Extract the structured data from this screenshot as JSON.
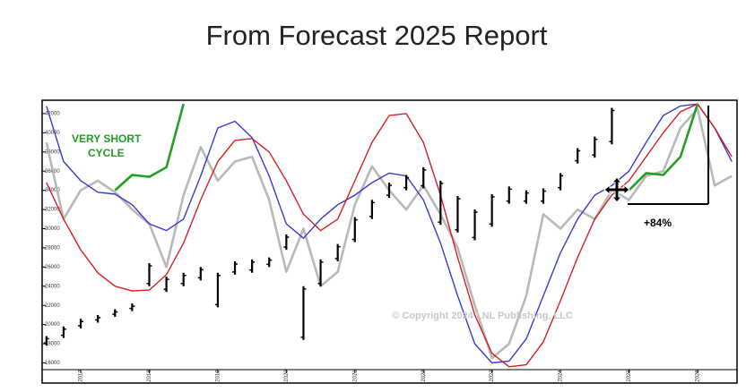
{
  "chart_data": {
    "type": "line",
    "title": "From Forecast 2025 Report",
    "annotations": [
      "VERY SHORT",
      "CYCLE",
      "+84%",
      "© Copyright 2024 LNL Publishing, LLC"
    ],
    "x": [
      2016.5,
      2016.75,
      2017.0,
      2017.25,
      2017.5,
      2017.75,
      2018.0,
      2018.25,
      2018.5,
      2018.75,
      2019.0,
      2019.25,
      2019.5,
      2019.75,
      2020.0,
      2020.25,
      2020.5,
      2020.75,
      2021.0,
      2021.25,
      2021.5,
      2021.75,
      2022.0,
      2022.25,
      2022.5,
      2022.75,
      2023.0,
      2023.25,
      2023.5,
      2023.75,
      2024.0,
      2024.25,
      2024.5,
      2024.75,
      2025.0,
      2025.25,
      2025.5,
      2025.75,
      2026.0,
      2026.25,
      2026.5
    ],
    "series": [
      {
        "color": "#b8b8b8",
        "values": [
          39000,
          31000,
          34000,
          35000,
          33800,
          32000,
          30500,
          26000,
          33500,
          38500,
          35000,
          37000,
          37500,
          33000,
          25500,
          30000,
          24000,
          25500,
          32500,
          36500,
          34000,
          32000,
          34500,
          31500,
          28000,
          22000,
          16500,
          18000,
          23000,
          31500,
          30000,
          32000,
          31000,
          34000,
          33000,
          35500,
          36000,
          40500,
          42500,
          34500,
          35500
        ]
      },
      {
        "color": "#3a3acc",
        "values": [
          42800,
          37000,
          35000,
          33800,
          33600,
          32500,
          30500,
          29800,
          31000,
          35500,
          40500,
          41200,
          39500,
          35500,
          30500,
          29000,
          31000,
          32500,
          33500,
          34800,
          35800,
          35500,
          33000,
          28500,
          23000,
          18000,
          16000,
          16200,
          18500,
          23000,
          27500,
          31000,
          33500,
          34500,
          36000,
          39000,
          41800,
          42800,
          43000,
          40500,
          37000
        ]
      },
      {
        "color": "#d42020",
        "values": [
          34800,
          31000,
          27800,
          25400,
          24000,
          23500,
          23600,
          25200,
          28500,
          33000,
          37000,
          39200,
          39400,
          38000,
          35000,
          31500,
          29800,
          31000,
          35000,
          39000,
          41800,
          42000,
          39000,
          33500,
          27000,
          21000,
          17000,
          15600,
          15800,
          18200,
          22500,
          27000,
          31000,
          33500,
          35000,
          37500,
          40000,
          42200,
          43000,
          40500,
          37500
        ]
      },
      {
        "color": "#22a022",
        "values": [
          null,
          null,
          null,
          null,
          34000,
          35600,
          35400,
          36400,
          43000,
          null,
          null,
          null,
          null,
          null,
          null,
          null,
          null,
          null,
          null,
          null,
          null,
          null,
          null,
          null,
          null,
          null,
          null,
          null,
          null,
          null,
          null,
          null,
          null,
          null,
          34000,
          35800,
          35600,
          37500,
          43000,
          null,
          null
        ]
      },
      {
        "color": "#000000",
        "high": [
          18800,
          19800,
          20600,
          21000,
          21600,
          22200,
          26400,
          25000,
          25400,
          26000,
          25400,
          26600,
          26800,
          27000,
          29400,
          24000,
          26800,
          28400,
          31200,
          33000,
          34800,
          35600,
          36400,
          35000,
          33400,
          32000,
          33600,
          34400,
          34000,
          34200,
          35800,
          38400,
          39600,
          42600,
          null,
          null,
          null,
          null,
          null,
          null,
          null
        ],
        "low": [
          17800,
          18600,
          19600,
          20200,
          20800,
          21400,
          24000,
          23400,
          24000,
          24600,
          21800,
          25200,
          25400,
          26000,
          27800,
          18400,
          24000,
          26600,
          28600,
          31000,
          33200,
          34000,
          34200,
          30400,
          29600,
          28800,
          30200,
          32600,
          32600,
          32600,
          34000,
          36800,
          37400,
          38800,
          null,
          null,
          null,
          null,
          null,
          null,
          null
        ]
      }
    ],
    "xlim": [
      2016.45,
      2026.55
    ],
    "xticks": [
      2017,
      2018,
      2019,
      2020,
      2021,
      2022,
      2023,
      2024,
      2025,
      2026
    ],
    "ylim": [
      15300,
      43300
    ],
    "yticks": [
      16000,
      18000,
      20000,
      22000,
      24000,
      26000,
      28000,
      30000,
      32000,
      34000,
      36000,
      38000,
      40000,
      42000
    ],
    "grid": false
  }
}
